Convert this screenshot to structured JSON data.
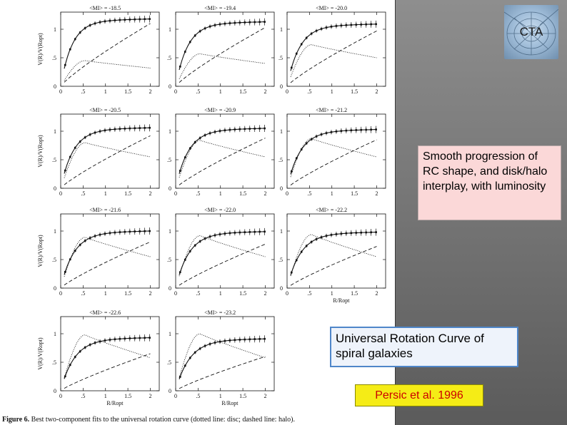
{
  "logo": {
    "text": "CTA",
    "icon": "telescope-mesh-icon"
  },
  "callouts": {
    "rc_shape": "Smooth progression of RC shape, and disk/halo interplay, with luminosity",
    "urc": "Universal Rotation Curve of spiral galaxies",
    "reference": "Persic et al. 1996"
  },
  "caption": {
    "label": "Figure 6.",
    "text": " Best two-component fits to the universal rotation curve (dotted line: disc; dashed line: halo)."
  },
  "colors": {
    "callout_red": "#cc0000",
    "callout_yellow": "#f5ec16",
    "callout_pink": "#fbd8d8",
    "callout_blue_border": "#4f86c9"
  },
  "chart_data": {
    "type": "line",
    "xlabel": "R/Ropt",
    "ylabel": "V(R)/V(Ropt)",
    "xlim": [
      0,
      2.2
    ],
    "ylim": [
      0,
      1.3
    ],
    "xticks": [
      "0",
      ".5",
      "1",
      "1.5",
      "2"
    ],
    "yticks": [
      "0",
      ".5",
      "1"
    ],
    "panels": [
      {
        "title": "<MI> = -18.5",
        "v_end": 1.18,
        "disk_peak": 0.45,
        "disk_end": 0.32,
        "halo_end": 1.1
      },
      {
        "title": "<MI> = -19.4",
        "v_end": 1.13,
        "disk_peak": 0.57,
        "disk_end": 0.4,
        "halo_end": 1.03
      },
      {
        "title": "<MI> = -20.0",
        "v_end": 1.09,
        "disk_peak": 0.73,
        "disk_end": 0.5,
        "halo_end": 0.97
      },
      {
        "title": "<MI> = -20.5",
        "v_end": 1.06,
        "disk_peak": 0.8,
        "disk_end": 0.55,
        "halo_end": 0.92
      },
      {
        "title": "<MI> = -20.9",
        "v_end": 1.05,
        "disk_peak": 0.84,
        "disk_end": 0.55,
        "halo_end": 0.88
      },
      {
        "title": "<MI> = -21.2",
        "v_end": 1.03,
        "disk_peak": 0.87,
        "disk_end": 0.55,
        "halo_end": 0.85
      },
      {
        "title": "<MI> = -21.6",
        "v_end": 1.0,
        "disk_peak": 0.89,
        "disk_end": 0.55,
        "halo_end": 0.81
      },
      {
        "title": "<MI> = -22.0",
        "v_end": 0.99,
        "disk_peak": 0.92,
        "disk_end": 0.55,
        "halo_end": 0.77
      },
      {
        "title": "<MI> = -22.2",
        "v_end": 0.98,
        "disk_peak": 0.94,
        "disk_end": 0.55,
        "halo_end": 0.73
      },
      {
        "title": "<MI> = -22.6",
        "v_end": 0.93,
        "disk_peak": 0.98,
        "disk_end": 0.58,
        "halo_end": 0.65
      },
      {
        "title": "<MI> = -23.2",
        "v_end": 0.91,
        "disk_peak": 1.0,
        "disk_end": 0.58,
        "halo_end": 0.6
      }
    ]
  }
}
